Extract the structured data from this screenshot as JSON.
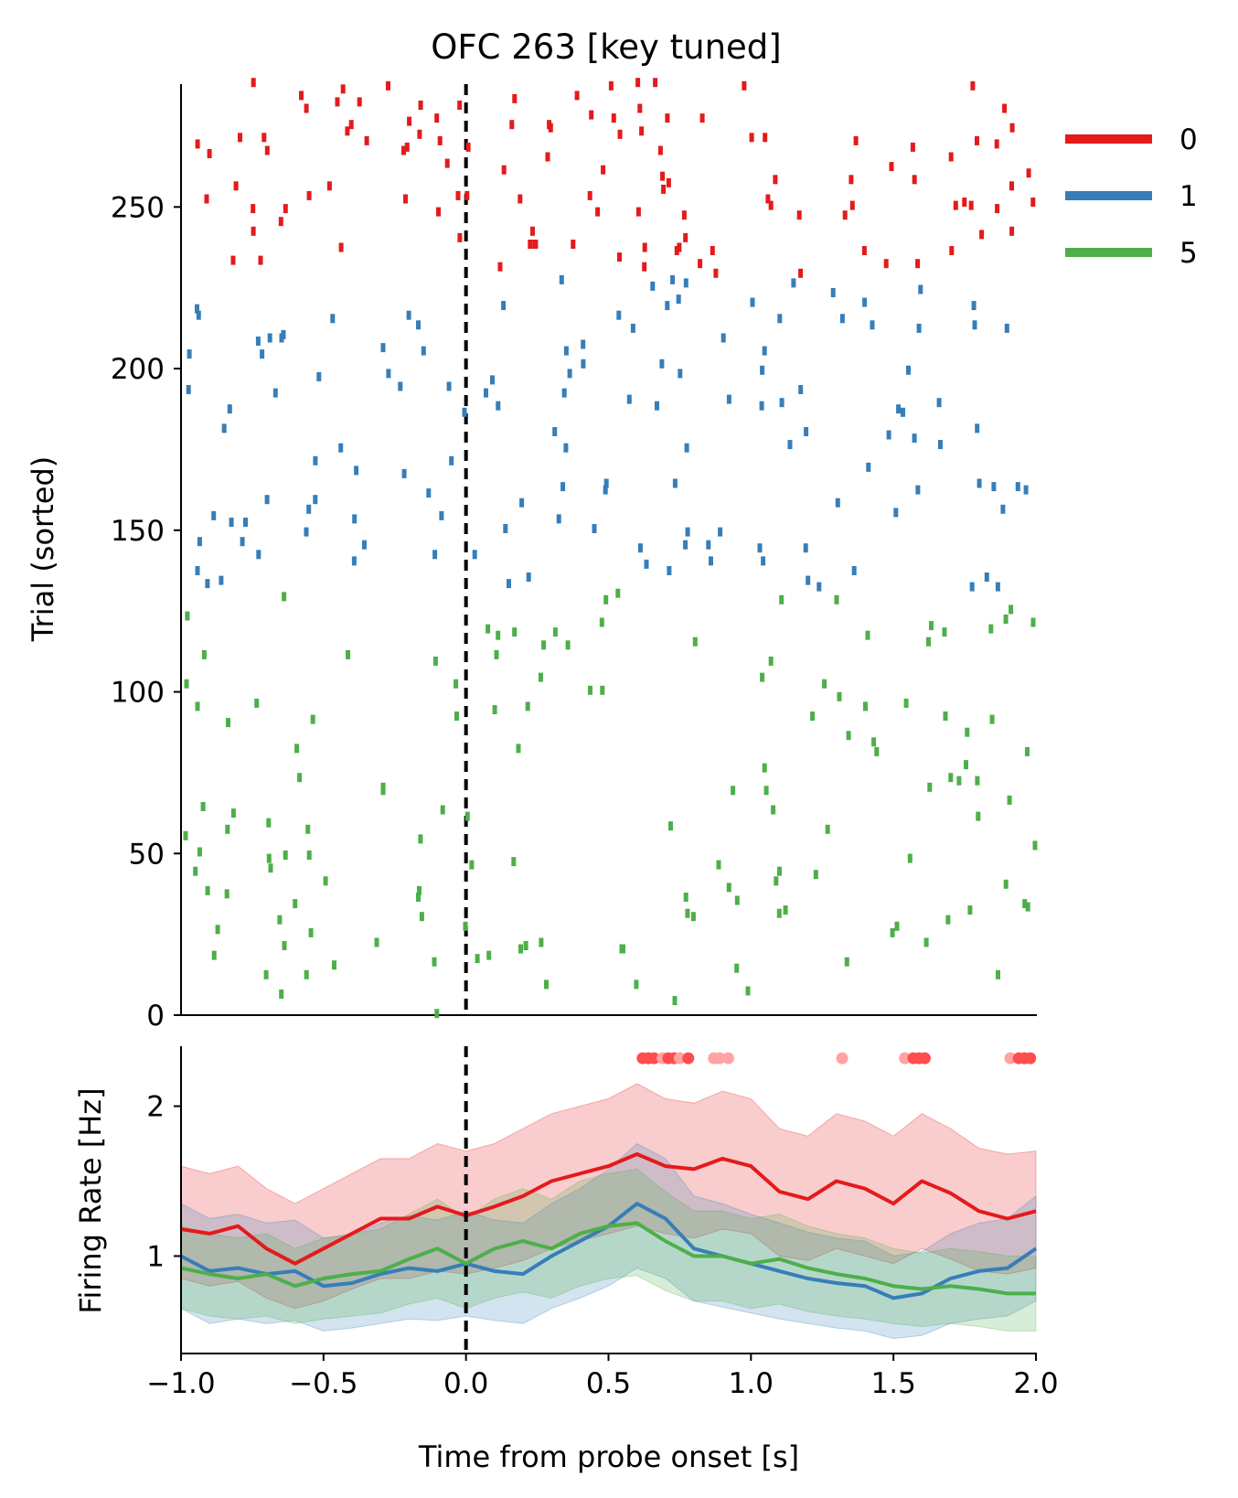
{
  "chart_data": [
    {
      "type": "raster",
      "title": "OFC 263 [key tuned]",
      "ylabel": "Trial (sorted)",
      "xlim": [
        -1.0,
        2.0
      ],
      "ylim": [
        0,
        288
      ],
      "y_ticks": [
        0,
        50,
        100,
        150,
        200,
        250
      ],
      "onset_line_x": 0.0,
      "legend": {
        "placement": "outside-right-top",
        "entries": [
          {
            "label": "0",
            "color": "#e41a1c"
          },
          {
            "label": "1",
            "color": "#377eb8"
          },
          {
            "label": "5",
            "color": "#4daf4a"
          }
        ]
      },
      "groups": [
        {
          "name": "0",
          "color": "#e41a1c",
          "trial_range": [
            228,
            288
          ],
          "rate_hz": 1.35
        },
        {
          "name": "1",
          "color": "#377eb8",
          "trial_range": [
            132,
            227
          ],
          "rate_hz": 1.0
        },
        {
          "name": "5",
          "color": "#4daf4a",
          "trial_range": [
            0,
            131
          ],
          "rate_hz": 0.95
        }
      ]
    },
    {
      "type": "line",
      "xlabel": "Time from probe onset [s]",
      "ylabel": "Firing Rate [Hz]",
      "xlim": [
        -1.0,
        2.0
      ],
      "ylim": [
        0.35,
        2.4
      ],
      "x_ticks": [
        "−1.0",
        "−0.5",
        "0.0",
        "0.5",
        "1.0",
        "1.5",
        "2.0"
      ],
      "x_tick_values": [
        -1.0,
        -0.5,
        0.0,
        0.5,
        1.0,
        1.5,
        2.0
      ],
      "y_ticks": [
        1,
        2
      ],
      "onset_line_x": 0.0,
      "x": [
        -1.0,
        -0.9,
        -0.8,
        -0.7,
        -0.6,
        -0.5,
        -0.4,
        -0.3,
        -0.2,
        -0.1,
        0.0,
        0.1,
        0.2,
        0.3,
        0.4,
        0.5,
        0.6,
        0.7,
        0.8,
        0.9,
        1.0,
        1.1,
        1.2,
        1.3,
        1.4,
        1.5,
        1.6,
        1.7,
        1.8,
        1.9,
        2.0
      ],
      "series": [
        {
          "name": "0",
          "color": "#e41a1c",
          "values": [
            1.18,
            1.15,
            1.2,
            1.05,
            0.95,
            1.05,
            1.15,
            1.25,
            1.25,
            1.33,
            1.27,
            1.33,
            1.4,
            1.5,
            1.55,
            1.6,
            1.68,
            1.6,
            1.58,
            1.65,
            1.6,
            1.43,
            1.38,
            1.5,
            1.45,
            1.35,
            1.5,
            1.42,
            1.3,
            1.25,
            1.3
          ],
          "band_lower": [
            0.85,
            0.8,
            0.83,
            0.72,
            0.65,
            0.7,
            0.78,
            0.85,
            0.85,
            0.9,
            0.88,
            0.92,
            0.97,
            1.05,
            1.1,
            1.15,
            1.2,
            1.15,
            1.12,
            1.18,
            1.15,
            1.0,
            0.97,
            1.05,
            1.0,
            0.95,
            1.05,
            0.98,
            0.9,
            0.88,
            0.92
          ],
          "band_upper": [
            1.6,
            1.55,
            1.6,
            1.45,
            1.35,
            1.45,
            1.55,
            1.65,
            1.65,
            1.75,
            1.7,
            1.75,
            1.85,
            1.95,
            2.0,
            2.05,
            2.15,
            2.05,
            2.02,
            2.1,
            2.05,
            1.85,
            1.8,
            1.95,
            1.9,
            1.8,
            1.95,
            1.85,
            1.72,
            1.68,
            1.7
          ]
        },
        {
          "name": "1",
          "color": "#377eb8",
          "values": [
            1.0,
            0.9,
            0.92,
            0.88,
            0.9,
            0.8,
            0.82,
            0.88,
            0.92,
            0.9,
            0.95,
            0.9,
            0.88,
            1.0,
            1.1,
            1.2,
            1.35,
            1.25,
            1.05,
            1.0,
            0.95,
            0.9,
            0.85,
            0.82,
            0.8,
            0.72,
            0.75,
            0.85,
            0.9,
            0.92,
            1.05
          ],
          "band_lower": [
            0.65,
            0.55,
            0.58,
            0.55,
            0.57,
            0.5,
            0.52,
            0.55,
            0.58,
            0.57,
            0.6,
            0.57,
            0.55,
            0.65,
            0.72,
            0.8,
            0.92,
            0.85,
            0.7,
            0.66,
            0.62,
            0.58,
            0.55,
            0.52,
            0.5,
            0.45,
            0.47,
            0.55,
            0.58,
            0.6,
            0.7
          ],
          "band_upper": [
            1.35,
            1.25,
            1.28,
            1.22,
            1.24,
            1.12,
            1.14,
            1.22,
            1.27,
            1.24,
            1.3,
            1.24,
            1.22,
            1.35,
            1.45,
            1.58,
            1.75,
            1.65,
            1.4,
            1.35,
            1.28,
            1.22,
            1.16,
            1.12,
            1.1,
            1.0,
            1.03,
            1.15,
            1.22,
            1.25,
            1.4
          ]
        },
        {
          "name": "5",
          "color": "#4daf4a",
          "values": [
            0.92,
            0.88,
            0.85,
            0.88,
            0.8,
            0.85,
            0.88,
            0.9,
            0.98,
            1.05,
            0.95,
            1.05,
            1.1,
            1.05,
            1.15,
            1.2,
            1.22,
            1.1,
            1.0,
            1.0,
            0.95,
            0.98,
            0.92,
            0.88,
            0.85,
            0.8,
            0.78,
            0.8,
            0.78,
            0.75,
            0.75
          ],
          "band_lower": [
            0.65,
            0.6,
            0.58,
            0.6,
            0.55,
            0.58,
            0.6,
            0.62,
            0.68,
            0.72,
            0.65,
            0.72,
            0.76,
            0.72,
            0.8,
            0.85,
            0.87,
            0.77,
            0.7,
            0.7,
            0.65,
            0.68,
            0.63,
            0.6,
            0.58,
            0.55,
            0.53,
            0.55,
            0.53,
            0.5,
            0.5
          ],
          "band_upper": [
            1.2,
            1.15,
            1.12,
            1.15,
            1.05,
            1.12,
            1.15,
            1.18,
            1.28,
            1.38,
            1.25,
            1.38,
            1.45,
            1.38,
            1.5,
            1.55,
            1.58,
            1.43,
            1.3,
            1.3,
            1.25,
            1.28,
            1.2,
            1.15,
            1.12,
            1.05,
            1.02,
            1.05,
            1.03,
            1.0,
            1.0
          ]
        }
      ],
      "significance_y": 2.32,
      "significance_points": [
        {
          "x": 0.62,
          "strong": true
        },
        {
          "x": 0.64,
          "strong": true
        },
        {
          "x": 0.66,
          "strong": true
        },
        {
          "x": 0.69,
          "strong": false
        },
        {
          "x": 0.71,
          "strong": true
        },
        {
          "x": 0.73,
          "strong": true
        },
        {
          "x": 0.75,
          "strong": false
        },
        {
          "x": 0.78,
          "strong": true
        },
        {
          "x": 0.87,
          "strong": false
        },
        {
          "x": 0.89,
          "strong": false
        },
        {
          "x": 0.92,
          "strong": false
        },
        {
          "x": 1.32,
          "strong": false
        },
        {
          "x": 1.54,
          "strong": false
        },
        {
          "x": 1.57,
          "strong": true
        },
        {
          "x": 1.59,
          "strong": true
        },
        {
          "x": 1.61,
          "strong": true
        },
        {
          "x": 1.91,
          "strong": false
        },
        {
          "x": 1.94,
          "strong": true
        },
        {
          "x": 1.96,
          "strong": true
        },
        {
          "x": 1.98,
          "strong": true
        }
      ]
    }
  ]
}
